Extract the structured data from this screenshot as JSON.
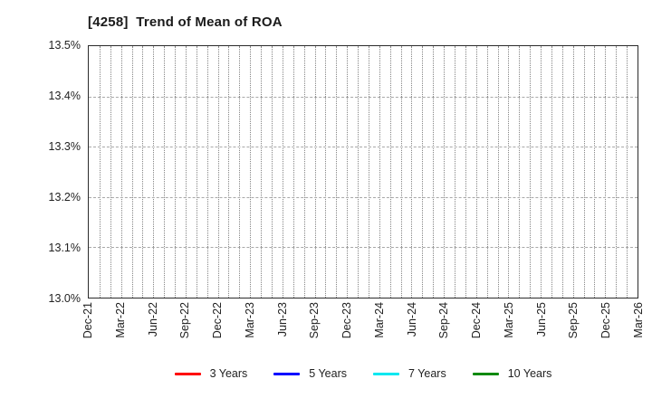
{
  "title": "[4258]  Trend of Mean of ROA",
  "chart_data": {
    "type": "line",
    "title": "[4258]  Trend of Mean of ROA",
    "xlabel": "",
    "ylabel": "",
    "ylim": [
      13.0,
      13.5
    ],
    "y_ticks": [
      {
        "value": 13.5,
        "label": "13.5%"
      },
      {
        "value": 13.4,
        "label": "13.4%"
      },
      {
        "value": 13.3,
        "label": "13.3%"
      },
      {
        "value": 13.2,
        "label": "13.2%"
      },
      {
        "value": 13.1,
        "label": "13.1%"
      },
      {
        "value": 13.0,
        "label": "13.0%"
      }
    ],
    "x_tick_labels": [
      "Dec-21",
      "Mar-22",
      "Jun-22",
      "Sep-22",
      "Dec-22",
      "Mar-23",
      "Jun-23",
      "Sep-23",
      "Dec-23",
      "Mar-24",
      "Jun-24",
      "Sep-24",
      "Dec-24",
      "Mar-25",
      "Jun-25",
      "Sep-25",
      "Dec-25",
      "Mar-26"
    ],
    "x_label_step_months": 3,
    "months_total": 51,
    "grid": true,
    "legend_position": "bottom",
    "series": [
      {
        "name": "3 Years",
        "color": "#ff0000",
        "values": []
      },
      {
        "name": "5 Years",
        "color": "#0000ff",
        "values": []
      },
      {
        "name": "7 Years",
        "color": "#00e8f0",
        "values": []
      },
      {
        "name": "10 Years",
        "color": "#0f8a0f",
        "values": []
      }
    ]
  }
}
